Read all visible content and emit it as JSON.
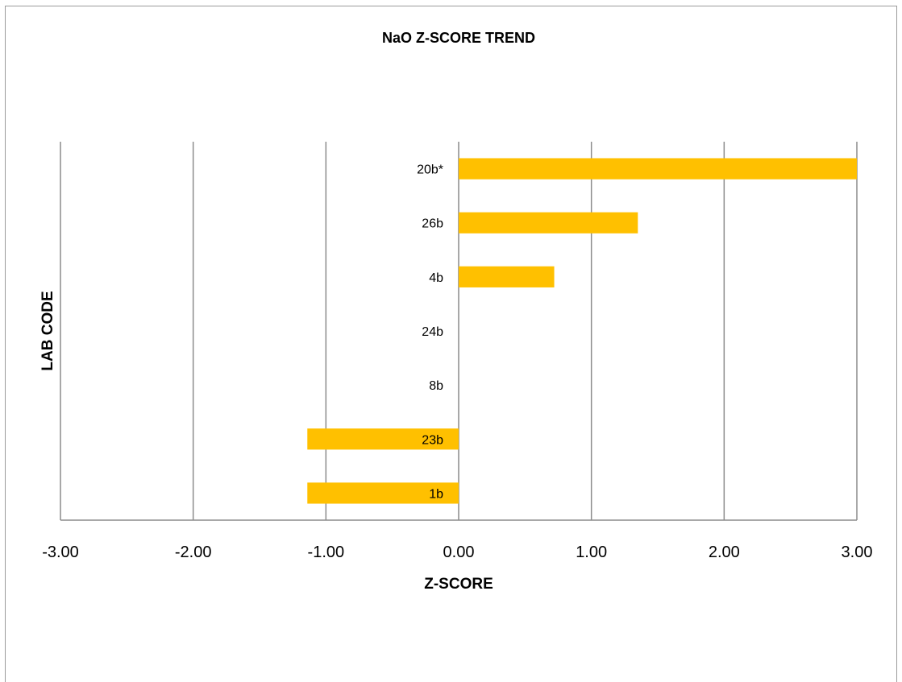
{
  "chart_data": {
    "type": "bar",
    "orientation": "horizontal",
    "title": "NaO Z-SCORE TREND",
    "xlabel": "Z-SCORE",
    "ylabel": "LAB CODE",
    "xlim": [
      -3,
      3
    ],
    "xticks": [
      "-3.00",
      "-2.00",
      "-1.00",
      "0.00",
      "1.00",
      "2.00",
      "3.00"
    ],
    "xtick_values": [
      -3,
      -2,
      -1,
      0,
      1,
      2,
      3
    ],
    "grid": true,
    "legend": "none",
    "bar_color": "#FFC000",
    "categories": [
      "20b*",
      "26b",
      "4b",
      "24b",
      "8b",
      "23b",
      "1b"
    ],
    "values": [
      3.0,
      1.35,
      0.72,
      0,
      0,
      -1.14,
      -1.14
    ]
  }
}
